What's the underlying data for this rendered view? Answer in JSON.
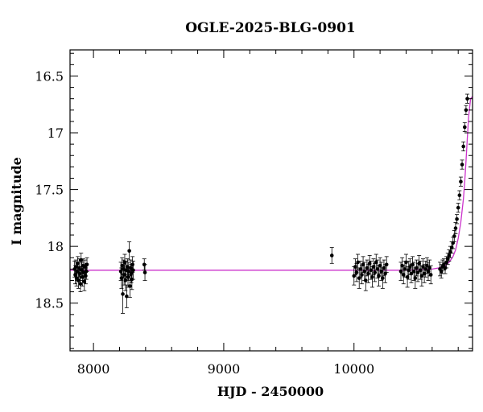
{
  "chart_data": {
    "type": "scatter",
    "title": "OGLE-2025-BLG-0901",
    "xlabel": "HJD - 2450000",
    "ylabel": "I magnitude",
    "xlim": [
      7820,
      10910
    ],
    "ylim": [
      18.92,
      16.27
    ],
    "y_inverted": true,
    "x_ticks": [
      8000,
      9000,
      10000
    ],
    "x_tick_labels": [
      "8000",
      "9000",
      "10000"
    ],
    "y_ticks": [
      16.5,
      17,
      17.5,
      18,
      18.5
    ],
    "y_tick_labels": [
      "16.5",
      "17",
      "17.5",
      "18",
      "18.5"
    ],
    "grid": false,
    "colors": {
      "points": "#000000",
      "model": "#cc33cc",
      "axes": "#000000"
    },
    "series": [
      {
        "type": "scatter_with_errorbars",
        "points": [
          [
            7855,
            18.2,
            0.07
          ],
          [
            7860,
            18.25,
            0.08
          ],
          [
            7865,
            18.18,
            0.06
          ],
          [
            7870,
            18.28,
            0.07
          ],
          [
            7875,
            18.22,
            0.08
          ],
          [
            7880,
            18.15,
            0.06
          ],
          [
            7885,
            18.3,
            0.07
          ],
          [
            7890,
            18.19,
            0.08
          ],
          [
            7895,
            18.24,
            0.06
          ],
          [
            7900,
            18.33,
            0.07
          ],
          [
            7905,
            18.12,
            0.06
          ],
          [
            7910,
            18.21,
            0.07
          ],
          [
            7915,
            18.27,
            0.08
          ],
          [
            7920,
            18.17,
            0.06
          ],
          [
            7925,
            18.23,
            0.07
          ],
          [
            7930,
            18.31,
            0.08
          ],
          [
            7935,
            18.18,
            0.06
          ],
          [
            7940,
            18.26,
            0.07
          ],
          [
            7945,
            18.22,
            0.07
          ],
          [
            7950,
            18.16,
            0.06
          ],
          [
            8210,
            18.22,
            0.08
          ],
          [
            8215,
            18.28,
            0.09
          ],
          [
            8220,
            18.17,
            0.07
          ],
          [
            8225,
            18.42,
            0.17
          ],
          [
            8230,
            18.2,
            0.08
          ],
          [
            8235,
            18.25,
            0.09
          ],
          [
            8240,
            18.14,
            0.07
          ],
          [
            8245,
            18.3,
            0.09
          ],
          [
            8250,
            18.21,
            0.08
          ],
          [
            8255,
            18.44,
            0.1
          ],
          [
            8260,
            18.18,
            0.07
          ],
          [
            8265,
            18.27,
            0.09
          ],
          [
            8270,
            18.22,
            0.08
          ],
          [
            8275,
            18.04,
            0.08
          ],
          [
            8280,
            18.35,
            0.1
          ],
          [
            8285,
            18.19,
            0.07
          ],
          [
            8290,
            18.24,
            0.08
          ],
          [
            8295,
            18.29,
            0.09
          ],
          [
            8300,
            18.16,
            0.07
          ],
          [
            8305,
            18.21,
            0.08
          ],
          [
            8390,
            18.16,
            0.05
          ],
          [
            8395,
            18.23,
            0.07
          ],
          [
            9830,
            18.08,
            0.07
          ],
          [
            10000,
            18.26,
            0.08
          ],
          [
            10010,
            18.18,
            0.07
          ],
          [
            10020,
            18.23,
            0.08
          ],
          [
            10030,
            18.14,
            0.07
          ],
          [
            10040,
            18.28,
            0.09
          ],
          [
            10050,
            18.2,
            0.07
          ],
          [
            10060,
            18.25,
            0.08
          ],
          [
            10070,
            18.16,
            0.07
          ],
          [
            10080,
            18.22,
            0.08
          ],
          [
            10090,
            18.3,
            0.09
          ],
          [
            10100,
            18.19,
            0.07
          ],
          [
            10110,
            18.24,
            0.08
          ],
          [
            10120,
            18.15,
            0.07
          ],
          [
            10130,
            18.21,
            0.08
          ],
          [
            10140,
            18.27,
            0.09
          ],
          [
            10150,
            18.18,
            0.07
          ],
          [
            10160,
            18.23,
            0.08
          ],
          [
            10170,
            18.14,
            0.07
          ],
          [
            10180,
            18.2,
            0.08
          ],
          [
            10190,
            18.26,
            0.09
          ],
          [
            10200,
            18.17,
            0.07
          ],
          [
            10210,
            18.22,
            0.08
          ],
          [
            10220,
            18.28,
            0.09
          ],
          [
            10230,
            18.19,
            0.07
          ],
          [
            10240,
            18.24,
            0.08
          ],
          [
            10250,
            18.16,
            0.07
          ],
          [
            10360,
            18.22,
            0.08
          ],
          [
            10370,
            18.17,
            0.07
          ],
          [
            10380,
            18.25,
            0.08
          ],
          [
            10390,
            18.2,
            0.07
          ],
          [
            10400,
            18.14,
            0.07
          ],
          [
            10410,
            18.27,
            0.09
          ],
          [
            10420,
            18.21,
            0.08
          ],
          [
            10430,
            18.18,
            0.07
          ],
          [
            10440,
            18.24,
            0.08
          ],
          [
            10450,
            18.16,
            0.07
          ],
          [
            10460,
            18.22,
            0.08
          ],
          [
            10470,
            18.28,
            0.09
          ],
          [
            10480,
            18.19,
            0.07
          ],
          [
            10490,
            18.23,
            0.08
          ],
          [
            10500,
            18.15,
            0.07
          ],
          [
            10510,
            18.21,
            0.08
          ],
          [
            10520,
            18.26,
            0.09
          ],
          [
            10530,
            18.18,
            0.07
          ],
          [
            10540,
            18.24,
            0.08
          ],
          [
            10550,
            18.2,
            0.07
          ],
          [
            10560,
            18.17,
            0.07
          ],
          [
            10570,
            18.22,
            0.08
          ],
          [
            10580,
            18.19,
            0.07
          ],
          [
            10590,
            18.25,
            0.08
          ],
          [
            10660,
            18.2,
            0.06
          ],
          [
            10670,
            18.22,
            0.06
          ],
          [
            10680,
            18.18,
            0.06
          ],
          [
            10690,
            18.16,
            0.05
          ],
          [
            10700,
            18.19,
            0.05
          ],
          [
            10710,
            18.14,
            0.05
          ],
          [
            10720,
            18.11,
            0.05
          ],
          [
            10730,
            18.08,
            0.05
          ],
          [
            10740,
            18.05,
            0.05
          ],
          [
            10750,
            18.01,
            0.05
          ],
          [
            10760,
            17.97,
            0.05
          ],
          [
            10770,
            17.91,
            0.05
          ],
          [
            10780,
            17.84,
            0.05
          ],
          [
            10790,
            17.76,
            0.04
          ],
          [
            10800,
            17.66,
            0.04
          ],
          [
            10810,
            17.55,
            0.04
          ],
          [
            10820,
            17.43,
            0.04
          ],
          [
            10830,
            17.28,
            0.04
          ],
          [
            10840,
            17.12,
            0.04
          ],
          [
            10850,
            16.95,
            0.04
          ],
          [
            10860,
            16.8,
            0.04
          ],
          [
            10870,
            16.7,
            0.04
          ]
        ]
      },
      {
        "type": "model_line",
        "x": [
          7820,
          8500,
          9000,
          9500,
          10000,
          10400,
          10600,
          10650,
          10700,
          10730,
          10760,
          10780,
          10800,
          10820,
          10840,
          10850,
          10860,
          10870,
          10880,
          10895,
          10910
        ],
        "y": [
          18.21,
          18.21,
          18.21,
          18.21,
          18.21,
          18.21,
          18.2,
          18.19,
          18.17,
          18.14,
          18.09,
          18.03,
          17.93,
          17.79,
          17.58,
          17.43,
          17.25,
          17.05,
          16.86,
          16.7,
          16.68
        ]
      }
    ]
  }
}
